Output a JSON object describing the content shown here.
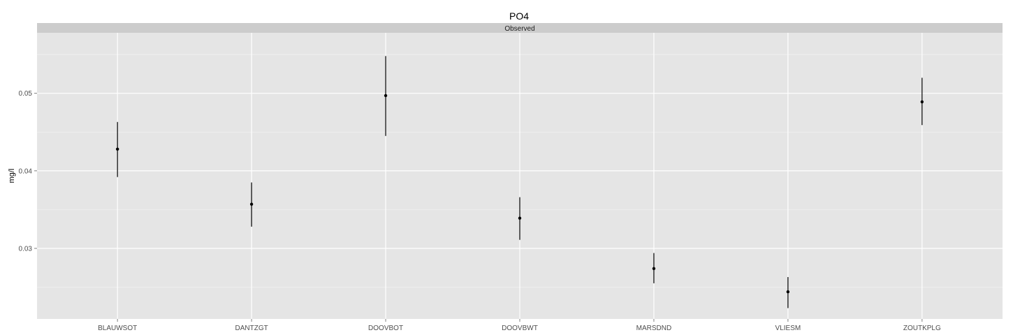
{
  "chart_data": {
    "type": "scatter",
    "title": "PO4",
    "facet_label": "Observed",
    "xlabel": "",
    "ylabel": "mg/l",
    "categories": [
      "BLAUWSOT",
      "DANTZGT",
      "DOOVBOT",
      "DOOVBWT",
      "MARSDND",
      "VLIESM",
      "ZOUTKPLG"
    ],
    "series": [
      {
        "values": [
          0.0428,
          0.0357,
          0.0497,
          0.0339,
          0.0274,
          0.0244,
          0.0489
        ],
        "lower": [
          0.0392,
          0.0328,
          0.0445,
          0.0311,
          0.0255,
          0.0223,
          0.0459
        ],
        "upper": [
          0.0463,
          0.0385,
          0.0548,
          0.0366,
          0.0294,
          0.0263,
          0.052
        ]
      }
    ],
    "ylim": [
      0.0209,
      0.0578
    ],
    "yticks": [
      0.03,
      0.04,
      0.05
    ],
    "ytick_labels": [
      "0.03",
      "0.04",
      "0.05"
    ],
    "grid": true,
    "colors": {
      "panel_background": "#e5e5e5",
      "strip_background": "#cccccc",
      "grid_major": "#ffffff",
      "grid_minor": "#f2f2f2",
      "marks": "#000000"
    }
  }
}
